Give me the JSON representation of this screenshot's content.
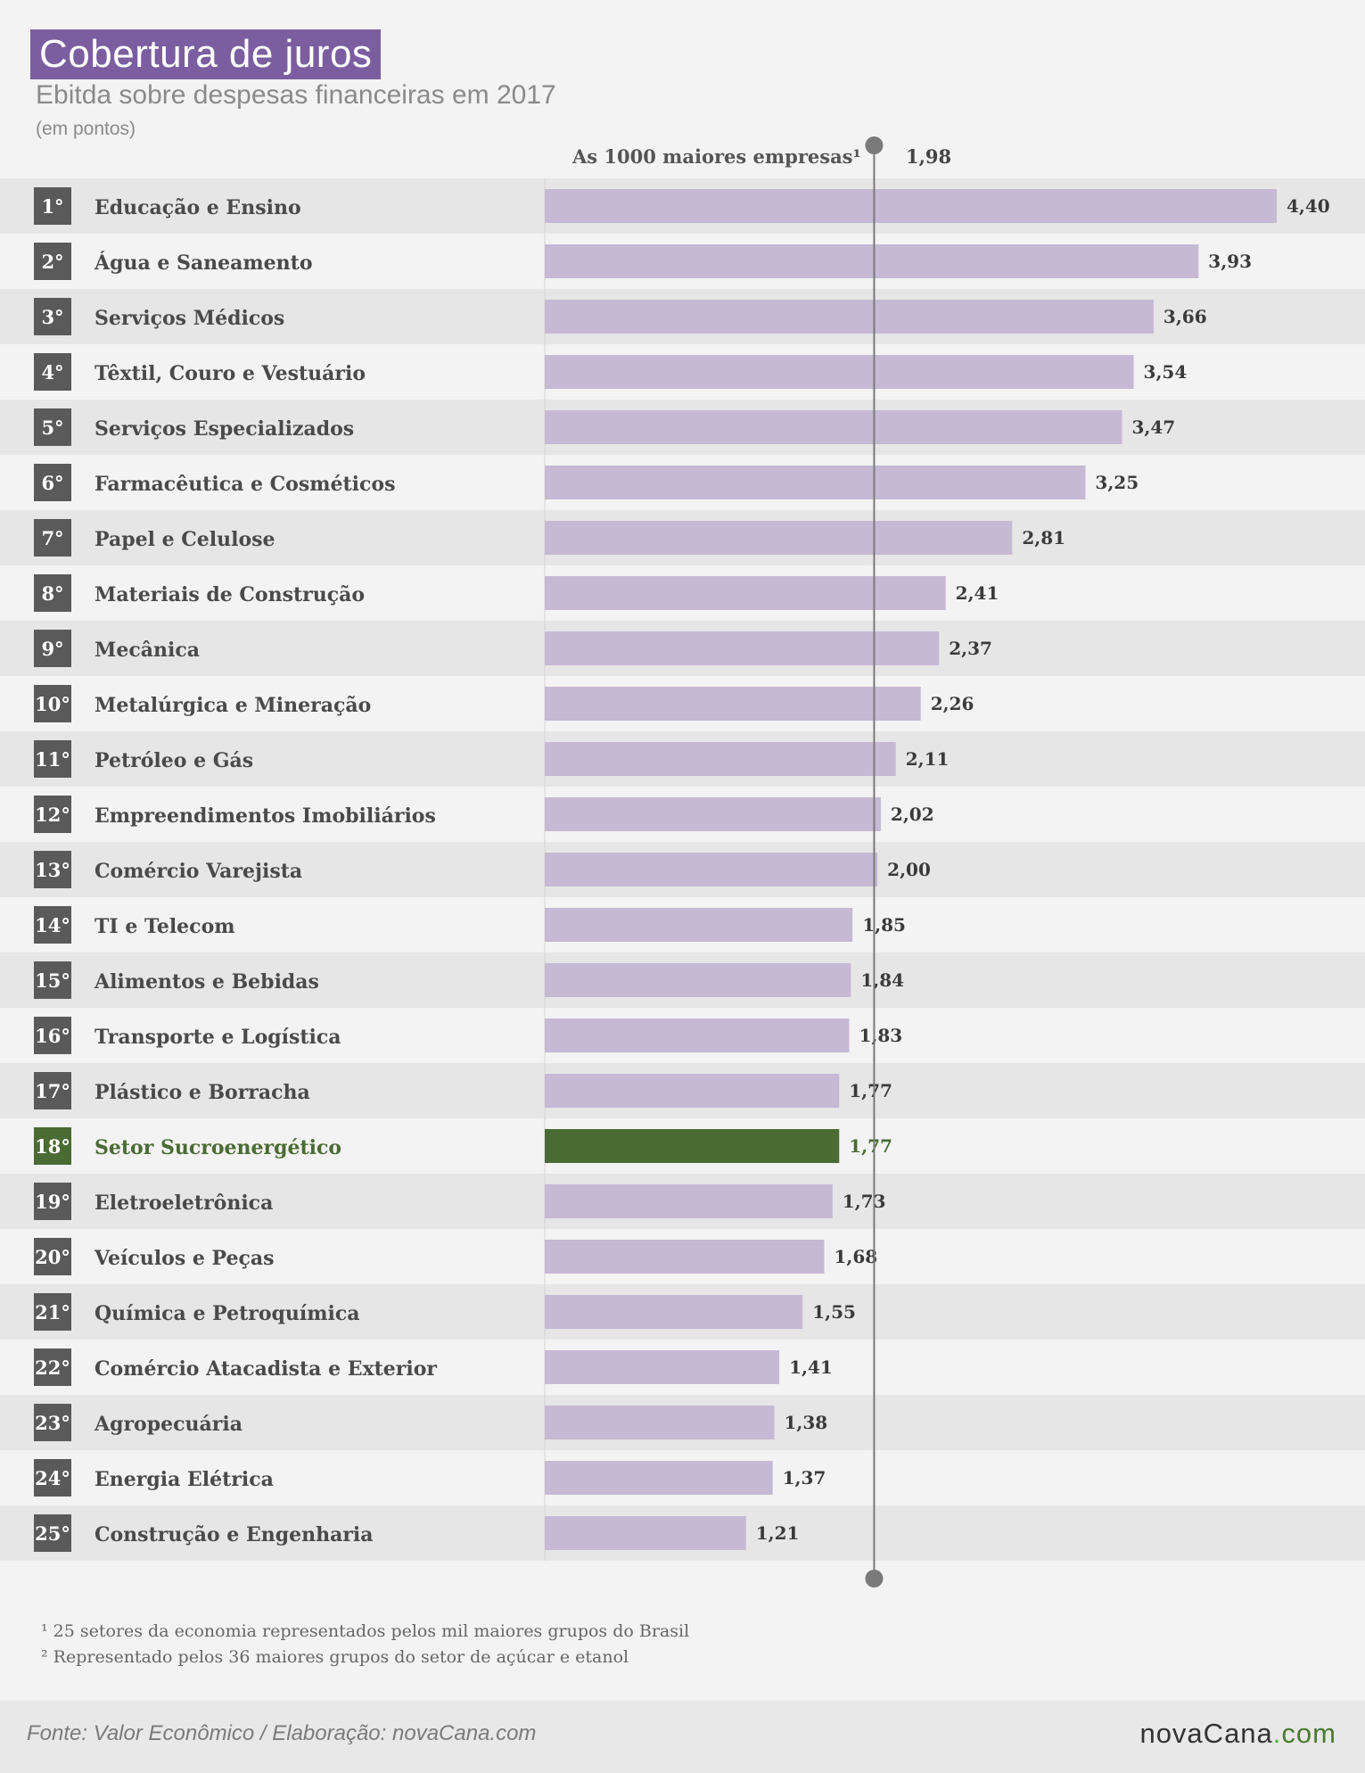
{
  "header": {
    "title": "Cobertura de juros",
    "subtitle": "Ebitda sobre despesas financeiras em 2017",
    "unit": "(em pontos)"
  },
  "reference": {
    "label": "As 1000 maiores empresas¹",
    "value_label": "1,98"
  },
  "colors": {
    "bar": "#c5b9d4",
    "highlight_bar": "#4a6b34",
    "highlight_text": "#4a6b34",
    "rank_badge": "#5a5a5a",
    "row_dark": "#e6e6e6",
    "row_light": "#f3f3f3",
    "reference_line": "#7a7a7a"
  },
  "chart_data": {
    "type": "bar",
    "orientation": "horizontal",
    "title": "Cobertura de juros",
    "subtitle": "Ebitda sobre despesas financeiras em 2017",
    "unit": "(em pontos)",
    "xlim": [
      0,
      4.4
    ],
    "reference_line": {
      "label": "As 1000 maiores empresas¹",
      "value": 1.98,
      "value_label": "1,98"
    },
    "highlight_index": 17,
    "ranks": [
      "1°",
      "2°",
      "3°",
      "4°",
      "5°",
      "6°",
      "7°",
      "8°",
      "9°",
      "10°",
      "11°",
      "12°",
      "13°",
      "14°",
      "15°",
      "16°",
      "17°",
      "18°",
      "19°",
      "20°",
      "21°",
      "22°",
      "23°",
      "24°",
      "25°"
    ],
    "categories": [
      "Educação e Ensino",
      "Água e Saneamento",
      "Serviços Médicos",
      "Têxtil, Couro e Vestuário",
      "Serviços Especializados",
      "Farmacêutica e Cosméticos",
      "Papel e Celulose",
      "Materiais de Construção",
      "Mecânica",
      "Metalúrgica e Mineração",
      "Petróleo e Gás",
      "Empreendimentos Imobiliários",
      "Comércio Varejista",
      "TI e Telecom",
      "Alimentos e Bebidas",
      "Transporte e Logística",
      "Plástico e Borracha",
      "Setor Sucroenergético",
      "Eletroeletrônica",
      "Veículos e Peças",
      "Química e Petroquímica",
      "Comércio Atacadista e Exterior",
      "Agropecuária",
      "Energia Elétrica",
      "Construção e Engenharia"
    ],
    "values": [
      4.4,
      3.93,
      3.66,
      3.54,
      3.47,
      3.25,
      2.81,
      2.41,
      2.37,
      2.26,
      2.11,
      2.02,
      2.0,
      1.85,
      1.84,
      1.83,
      1.77,
      1.77,
      1.73,
      1.68,
      1.55,
      1.41,
      1.38,
      1.37,
      1.21
    ],
    "value_labels": [
      "4,40",
      "3,93",
      "3,66",
      "3,54",
      "3,47",
      "3,25",
      "2,81",
      "2,41",
      "2,37",
      "2,26",
      "2,11",
      "2,02",
      "2,00",
      "1,85",
      "1,84",
      "1,83",
      "1,77",
      "1,77",
      "1,73",
      "1,68",
      "1,55",
      "1,41",
      "1,38",
      "1,37",
      "1,21"
    ]
  },
  "footnotes": [
    "¹ 25 setores da economia representados pelos mil maiores grupos do Brasil",
    "² Representado pelos 36 maiores grupos do setor de açúcar e etanol"
  ],
  "footer": {
    "source": "Fonte: Valor Econômico / Elaboração: novaCana.com",
    "logo_main": "novaCana",
    "logo_dot": ".",
    "logo_com": "com"
  }
}
